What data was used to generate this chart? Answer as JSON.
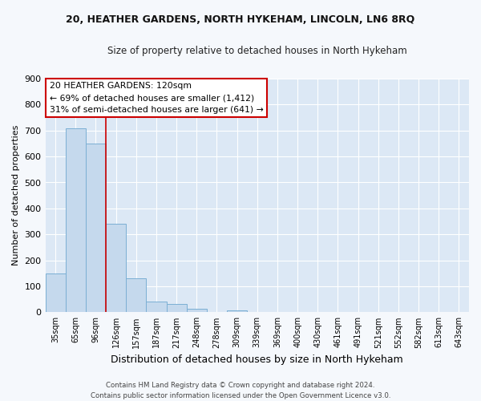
{
  "title": "20, HEATHER GARDENS, NORTH HYKEHAM, LINCOLN, LN6 8RQ",
  "subtitle": "Size of property relative to detached houses in North Hykeham",
  "xlabel": "Distribution of detached houses by size in North Hykeham",
  "ylabel": "Number of detached properties",
  "categories": [
    "35sqm",
    "65sqm",
    "96sqm",
    "126sqm",
    "157sqm",
    "187sqm",
    "217sqm",
    "248sqm",
    "278sqm",
    "309sqm",
    "339sqm",
    "369sqm",
    "400sqm",
    "430sqm",
    "461sqm",
    "491sqm",
    "521sqm",
    "552sqm",
    "582sqm",
    "613sqm",
    "643sqm"
  ],
  "values": [
    150,
    710,
    650,
    340,
    130,
    42,
    32,
    13,
    0,
    8,
    0,
    0,
    0,
    0,
    0,
    0,
    0,
    0,
    0,
    0,
    0
  ],
  "bar_color": "#c5d9ed",
  "bar_edge_color": "#7bafd4",
  "fig_bg_color": "#f5f8fc",
  "ax_bg_color": "#dce8f5",
  "grid_color": "#ffffff",
  "red_line_x": 2.5,
  "annotation_line1": "20 HEATHER GARDENS: 120sqm",
  "annotation_line2": "← 69% of detached houses are smaller (1,412)",
  "annotation_line3": "31% of semi-detached houses are larger (641) →",
  "annotation_box_color": "#ffffff",
  "annotation_box_edge": "#cc0000",
  "ylim": [
    0,
    900
  ],
  "yticks": [
    0,
    100,
    200,
    300,
    300,
    400,
    500,
    600,
    700,
    800,
    900
  ],
  "footer_line1": "Contains HM Land Registry data © Crown copyright and database right 2024.",
  "footer_line2": "Contains public sector information licensed under the Open Government Licence v3.0."
}
